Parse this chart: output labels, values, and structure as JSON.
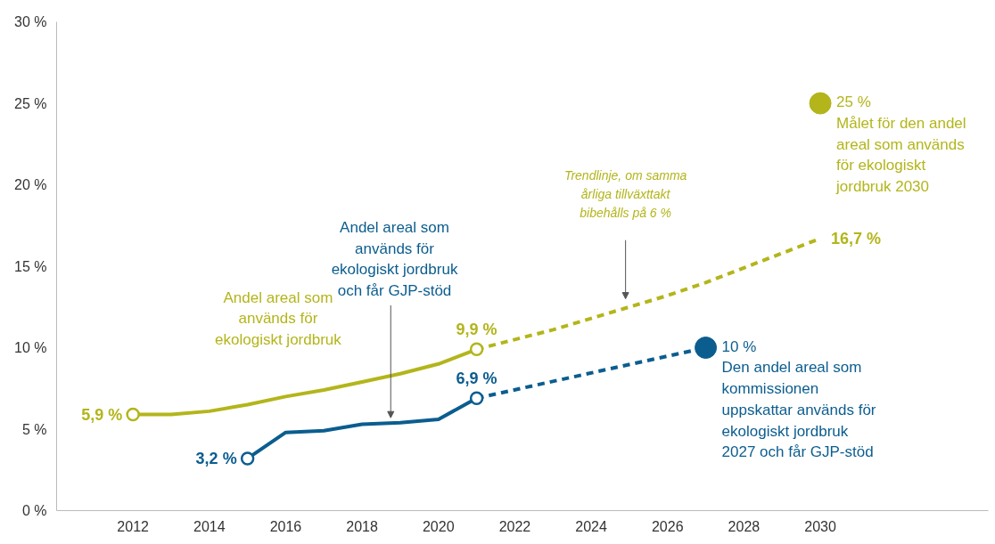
{
  "chart_data": {
    "type": "line",
    "xlim": [
      2010,
      2034.4
    ],
    "ylim": [
      0,
      30
    ],
    "xticks": [
      2012,
      2014,
      2016,
      2018,
      2020,
      2022,
      2024,
      2026,
      2028,
      2030
    ],
    "yticks": [
      {
        "value": 0,
        "label": "0 %"
      },
      {
        "value": 5,
        "label": "5 %"
      },
      {
        "value": 10,
        "label": "10 %"
      },
      {
        "value": 15,
        "label": "15 %"
      },
      {
        "value": 20,
        "label": "20 %"
      },
      {
        "value": 25,
        "label": "25 %"
      },
      {
        "value": 30,
        "label": "30 %"
      }
    ],
    "grid": false,
    "series": [
      {
        "name": "Andel areal som\nanvänds för\nekologiskt jordbruk",
        "color": "#b3b51b",
        "x": [
          2012,
          2013,
          2014,
          2015,
          2016,
          2017,
          2018,
          2019,
          2020,
          2021
        ],
        "values": [
          5.9,
          5.9,
          6.1,
          6.5,
          7.0,
          7.4,
          7.9,
          8.4,
          9.0,
          9.9
        ]
      },
      {
        "color": "#b3b51b",
        "line_style": "dashed",
        "x": [
          2021,
          2022,
          2023,
          2024,
          2025,
          2026,
          2027,
          2028,
          2029,
          2030
        ],
        "values": [
          9.9,
          10.5,
          11.1,
          11.8,
          12.5,
          13.2,
          14.0,
          14.9,
          15.8,
          16.7
        ]
      },
      {
        "name": "Andel areal som\nanvänds för\nekologiskt jordbruk\noch får GJP-stöd",
        "color": "#0b5d8f",
        "x": [
          2015,
          2016,
          2017,
          2018,
          2019,
          2020,
          2021
        ],
        "values": [
          3.2,
          4.8,
          4.9,
          5.3,
          5.4,
          5.6,
          6.9
        ]
      },
      {
        "color": "#0b5d8f",
        "line_style": "dashed",
        "x": [
          2021,
          2027
        ],
        "values": [
          6.9,
          10.0
        ]
      },
      {
        "type": "scatter",
        "marker": "circle",
        "color": "#b3b51b",
        "x": [
          2012,
          2021
        ],
        "values": [
          5.9,
          9.9
        ]
      },
      {
        "type": "scatter",
        "marker": "circle",
        "color": "#0b5d8f",
        "x": [
          2015,
          2021
        ],
        "values": [
          3.2,
          6.9
        ]
      },
      {
        "type": "bubble",
        "color": "#b3b51b",
        "x": [
          2030
        ],
        "values": [
          25
        ],
        "sizes": [
          1
        ]
      },
      {
        "type": "bubble",
        "color": "#0b5d8f",
        "x": [
          2027
        ],
        "values": [
          10
        ],
        "sizes": [
          1
        ]
      }
    ],
    "annotations": [
      {
        "text": "5,9 %",
        "x": 2012,
        "y": 5.9
      },
      {
        "text": "3,2 %",
        "x": 2015,
        "y": 3.2
      },
      {
        "text": "9,9 %",
        "x": 2021,
        "y": 9.9
      },
      {
        "text": "6,9 %",
        "x": 2021,
        "y": 6.9
      },
      {
        "text": "16,7 %",
        "x": 2030,
        "y": 16.7
      },
      {
        "text": "25 %\nMålet för den andel\nareal som används\nför ekologiskt\njordbruk 2030",
        "x": 2030,
        "y": 25
      },
      {
        "text": "10 %\nDen andel areal som\nkommissionen\nuppskattar används för\nekologiskt jordbruk\n2027 och får GJP-stöd",
        "x": 2027,
        "y": 10
      },
      "Trendlinje, om samma\nårliga tillväxttakt\nbibehålls på 6 %"
    ]
  }
}
